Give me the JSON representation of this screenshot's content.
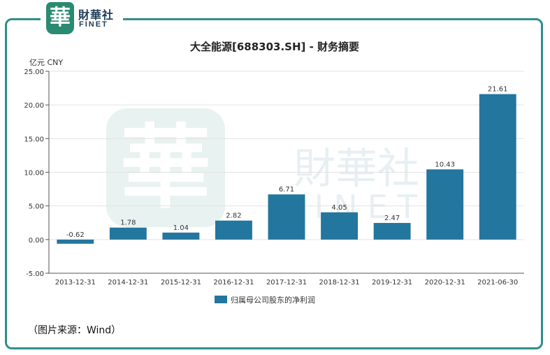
{
  "header": {
    "logo_mark": "華",
    "logo_cn": "財華社",
    "logo_en": "FINET"
  },
  "watermark": {
    "seal_char": "華",
    "text_cn": "財華社",
    "text_en": "FINET"
  },
  "source_note": "（图片来源：Wind）",
  "colors": {
    "bar": "#23769e",
    "frame": "#2f8f8d",
    "logo": "#2b8a72"
  },
  "chart_data": {
    "type": "bar",
    "title": "大全能源[688303.SH] - 财务摘要",
    "unit_label": "亿元 CNY",
    "categories": [
      "2013-12-31",
      "2014-12-31",
      "2015-12-31",
      "2016-12-31",
      "2017-12-31",
      "2018-12-31",
      "2019-12-31",
      "2020-12-31",
      "2021-06-30"
    ],
    "series": [
      {
        "name": "归属母公司股东的净利润",
        "values": [
          -0.62,
          1.78,
          1.04,
          2.82,
          6.71,
          4.05,
          2.47,
          10.43,
          21.61
        ]
      }
    ],
    "value_labels": [
      "-0.62",
      "1.78",
      "1.04",
      "2.82",
      "6.71",
      "4.05",
      "2.47",
      "10.43",
      "21.61"
    ],
    "y_ticks": [
      "-5.00",
      "0.00",
      "5.00",
      "10.00",
      "15.00",
      "20.00",
      "25.00"
    ],
    "ylim": [
      -5,
      25
    ],
    "grid": true,
    "legend_position": "bottom"
  }
}
